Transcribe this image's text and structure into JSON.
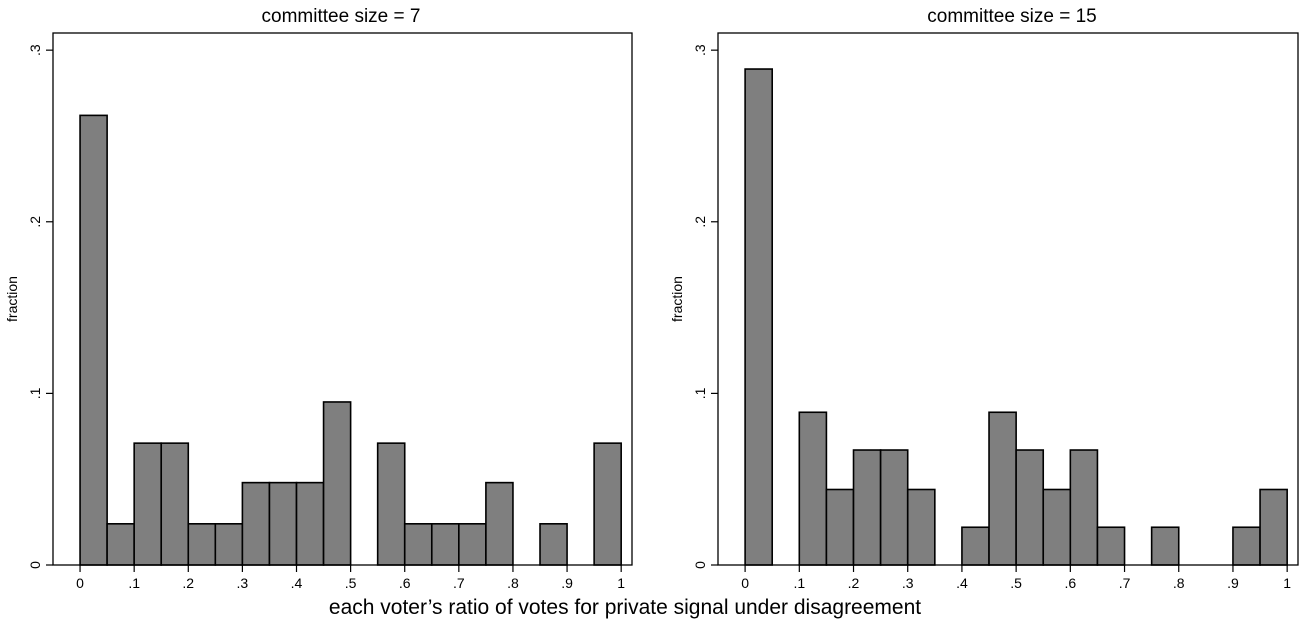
{
  "xlabel": "each voter’s ratio of votes for private signal under disagreement",
  "chart_data": [
    {
      "type": "bar",
      "title": "committee size = 7",
      "ylabel": "fraction",
      "xlabel": "",
      "xlim": [
        -0.05,
        1.02
      ],
      "ylim": [
        0,
        0.31
      ],
      "bin_width": 0.05,
      "grid": false,
      "bins": [
        {
          "start": 0.0,
          "value": 0.262
        },
        {
          "start": 0.05,
          "value": 0.024
        },
        {
          "start": 0.1,
          "value": 0.071
        },
        {
          "start": 0.15,
          "value": 0.071
        },
        {
          "start": 0.2,
          "value": 0.024
        },
        {
          "start": 0.25,
          "value": 0.024
        },
        {
          "start": 0.3,
          "value": 0.048
        },
        {
          "start": 0.35,
          "value": 0.048
        },
        {
          "start": 0.4,
          "value": 0.048
        },
        {
          "start": 0.45,
          "value": 0.095
        },
        {
          "start": 0.55,
          "value": 0.071
        },
        {
          "start": 0.6,
          "value": 0.024
        },
        {
          "start": 0.65,
          "value": 0.024
        },
        {
          "start": 0.7,
          "value": 0.024
        },
        {
          "start": 0.75,
          "value": 0.048
        },
        {
          "start": 0.85,
          "value": 0.024
        },
        {
          "start": 0.95,
          "value": 0.071
        }
      ],
      "x_ticks": [
        {
          "value": 0,
          "label": "0"
        },
        {
          "value": 0.1,
          "label": ".1"
        },
        {
          "value": 0.2,
          "label": ".2"
        },
        {
          "value": 0.3,
          "label": ".3"
        },
        {
          "value": 0.4,
          "label": ".4"
        },
        {
          "value": 0.5,
          "label": ".5"
        },
        {
          "value": 0.6,
          "label": ".6"
        },
        {
          "value": 0.7,
          "label": ".7"
        },
        {
          "value": 0.8,
          "label": ".8"
        },
        {
          "value": 0.9,
          "label": ".9"
        },
        {
          "value": 1,
          "label": "1"
        }
      ],
      "y_ticks": [
        {
          "value": 0,
          "label": "0"
        },
        {
          "value": 0.1,
          "label": ".1"
        },
        {
          "value": 0.2,
          "label": ".2"
        },
        {
          "value": 0.3,
          "label": ".3"
        }
      ]
    },
    {
      "type": "bar",
      "title": "committee size = 15",
      "ylabel": "fraction",
      "xlabel": "",
      "xlim": [
        -0.05,
        1.02
      ],
      "ylim": [
        0,
        0.31
      ],
      "bin_width": 0.05,
      "grid": false,
      "bins": [
        {
          "start": 0.0,
          "value": 0.289
        },
        {
          "start": 0.1,
          "value": 0.089
        },
        {
          "start": 0.15,
          "value": 0.044
        },
        {
          "start": 0.2,
          "value": 0.067
        },
        {
          "start": 0.25,
          "value": 0.067
        },
        {
          "start": 0.3,
          "value": 0.044
        },
        {
          "start": 0.4,
          "value": 0.022
        },
        {
          "start": 0.45,
          "value": 0.089
        },
        {
          "start": 0.5,
          "value": 0.067
        },
        {
          "start": 0.55,
          "value": 0.044
        },
        {
          "start": 0.6,
          "value": 0.067
        },
        {
          "start": 0.65,
          "value": 0.022
        },
        {
          "start": 0.75,
          "value": 0.022
        },
        {
          "start": 0.9,
          "value": 0.022
        },
        {
          "start": 0.95,
          "value": 0.044
        }
      ],
      "x_ticks": [
        {
          "value": 0,
          "label": "0"
        },
        {
          "value": 0.1,
          "label": ".1"
        },
        {
          "value": 0.2,
          "label": ".2"
        },
        {
          "value": 0.3,
          "label": ".3"
        },
        {
          "value": 0.4,
          "label": ".4"
        },
        {
          "value": 0.5,
          "label": ".5"
        },
        {
          "value": 0.6,
          "label": ".6"
        },
        {
          "value": 0.7,
          "label": ".7"
        },
        {
          "value": 0.8,
          "label": ".8"
        },
        {
          "value": 0.9,
          "label": ".9"
        },
        {
          "value": 1,
          "label": "1"
        }
      ],
      "y_ticks": [
        {
          "value": 0,
          "label": "0"
        },
        {
          "value": 0.1,
          "label": ".1"
        },
        {
          "value": 0.2,
          "label": ".2"
        },
        {
          "value": 0.3,
          "label": ".3"
        }
      ]
    }
  ]
}
